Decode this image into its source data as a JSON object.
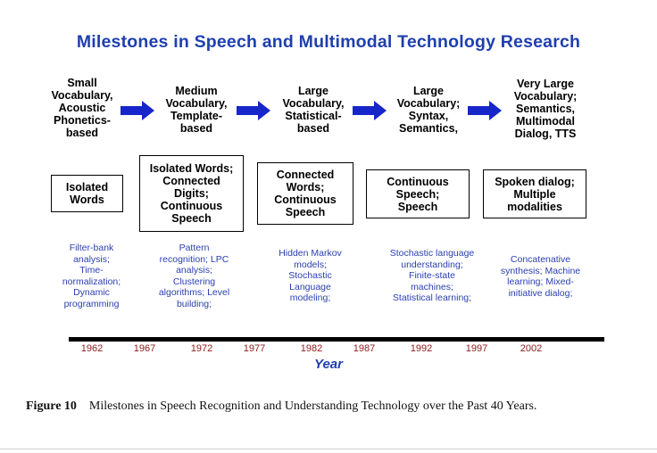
{
  "title": "Milestones in Speech and Multimodal Technology Research",
  "phases": [
    {
      "label_lines": [
        "Small",
        "Vocabulary,",
        "Acoustic",
        "Phonetics-",
        "based"
      ]
    },
    {
      "label_lines": [
        "Medium",
        "Vocabulary,",
        "Template-",
        "based"
      ]
    },
    {
      "label_lines": [
        "Large",
        "Vocabulary,",
        "Statistical-",
        "based"
      ]
    },
    {
      "label_lines": [
        "Large",
        "Vocabulary;",
        "Syntax,",
        "Semantics,"
      ]
    },
    {
      "label_lines": [
        "Very Large",
        "Vocabulary;",
        "Semantics,",
        "Multimodal",
        "Dialog, TTS"
      ]
    }
  ],
  "capabilities": [
    {
      "lines": [
        "Isolated",
        "Words"
      ]
    },
    {
      "lines": [
        "Isolated Words;",
        "Connected",
        "Digits;",
        "Continuous",
        "Speech"
      ]
    },
    {
      "lines": [
        "Connected",
        "Words;",
        "Continuous",
        "Speech"
      ]
    },
    {
      "lines": [
        "Continuous",
        "Speech;",
        "Speech"
      ]
    },
    {
      "lines": [
        "Spoken dialog;",
        "Multiple",
        "modalities"
      ]
    }
  ],
  "technologies": [
    {
      "lines": [
        "Filter-bank",
        "analysis;",
        "Time-",
        "normalization;",
        "Dynamic",
        "programming"
      ]
    },
    {
      "lines": [
        "Pattern",
        "recognition; LPC",
        "analysis;",
        "Clustering",
        "algorithms; Level",
        "building;"
      ]
    },
    {
      "lines": [
        "Hidden Markov",
        "models;",
        "Stochastic",
        "Language",
        "modeling;"
      ]
    },
    {
      "lines": [
        "Stochastic language",
        "understanding;",
        "Finite-state",
        "machines;",
        "Statistical learning;"
      ]
    },
    {
      "lines": [
        "Concatenative",
        "synthesis; Machine",
        "learning;  Mixed-",
        "initiative dialog;"
      ]
    }
  ],
  "timeline": {
    "years": [
      "1962",
      "1967",
      "1972",
      "1977",
      "1982",
      "1987",
      "1992",
      "1997",
      "2002"
    ],
    "axis_label": "Year"
  },
  "caption": {
    "label": "Figure 10",
    "text": "Milestones in Speech Recognition and Understanding Technology over the Past 40 Years."
  },
  "colors": {
    "title": "#1f3fae",
    "arrow": "#1726c9",
    "tech_text": "#2a3fb0",
    "year_text": "#8b1c1c"
  }
}
